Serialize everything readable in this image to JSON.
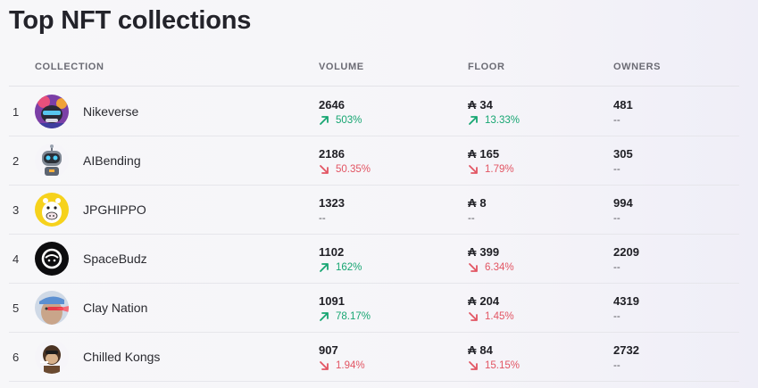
{
  "page": {
    "title": "Top NFT collections"
  },
  "columns": {
    "collection": "COLLECTION",
    "volume": "VOLUME",
    "floor": "FLOOR",
    "owners": "OWNERS"
  },
  "currency_symbol": "₳",
  "colors": {
    "up": "#17a672",
    "down": "#e25563",
    "accent_text": "#23232a"
  },
  "rows": [
    {
      "rank": "1",
      "name": "Nikeverse",
      "avatar_icon": "nikeverse-avatar-icon",
      "volume": "2646",
      "volume_change": "503%",
      "volume_dir": "up",
      "floor": "34",
      "floor_change": "13.33%",
      "floor_dir": "up",
      "owners": "481",
      "owners_change": "--"
    },
    {
      "rank": "2",
      "name": "AIBending",
      "avatar_icon": "robot-avatar-icon",
      "volume": "2186",
      "volume_change": "50.35%",
      "volume_dir": "down",
      "floor": "165",
      "floor_change": "1.79%",
      "floor_dir": "down",
      "owners": "305",
      "owners_change": "--"
    },
    {
      "rank": "3",
      "name": "JPGHIPPO",
      "avatar_icon": "hippo-avatar-icon",
      "volume": "1323",
      "volume_change": "--",
      "volume_dir": "none",
      "floor": "8",
      "floor_change": "--",
      "floor_dir": "none",
      "owners": "994",
      "owners_change": "--"
    },
    {
      "rank": "4",
      "name": "SpaceBudz",
      "avatar_icon": "astronaut-helmet-avatar-icon",
      "volume": "1102",
      "volume_change": "162%",
      "volume_dir": "up",
      "floor": "399",
      "floor_change": "6.34%",
      "floor_dir": "down",
      "owners": "2209",
      "owners_change": "--"
    },
    {
      "rank": "5",
      "name": "Clay Nation",
      "avatar_icon": "clay-character-avatar-icon",
      "volume": "1091",
      "volume_change": "78.17%",
      "volume_dir": "up",
      "floor": "204",
      "floor_change": "1.45%",
      "floor_dir": "down",
      "owners": "4319",
      "owners_change": "--"
    },
    {
      "rank": "6",
      "name": "Chilled Kongs",
      "avatar_icon": "kong-avatar-icon",
      "volume": "907",
      "volume_change": "1.94%",
      "volume_dir": "down",
      "floor": "84",
      "floor_change": "15.15%",
      "floor_dir": "down",
      "owners": "2732",
      "owners_change": "--"
    }
  ]
}
